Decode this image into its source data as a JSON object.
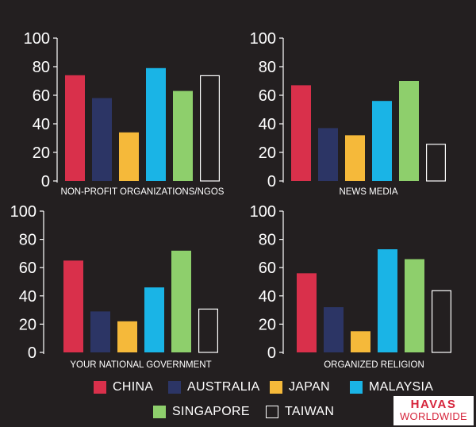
{
  "chart_data": [
    {
      "type": "bar",
      "title": "NON-PROFIT ORGANIZATIONS/NGOS",
      "categories": [
        "CHINA",
        "AUSTRALIA",
        "JAPAN",
        "MALAYSIA",
        "SINGAPORE",
        "TAIWAN"
      ],
      "values": [
        74,
        58,
        34,
        79,
        63,
        74
      ],
      "ylim": [
        0,
        100
      ],
      "yticks": [
        "0",
        "20",
        "40",
        "60",
        "80",
        "100"
      ]
    },
    {
      "type": "bar",
      "title": "NEWS MEDIA",
      "categories": [
        "CHINA",
        "AUSTRALIA",
        "JAPAN",
        "MALAYSIA",
        "SINGAPORE",
        "TAIWAN"
      ],
      "values": [
        67,
        37,
        32,
        56,
        70,
        26
      ],
      "ylim": [
        0,
        100
      ],
      "yticks": [
        "0",
        "20",
        "40",
        "60",
        "80",
        "100"
      ]
    },
    {
      "type": "bar",
      "title": "YOUR NATIONAL GOVERNMENT",
      "categories": [
        "CHINA",
        "AUSTRALIA",
        "JAPAN",
        "MALAYSIA",
        "SINGAPORE",
        "TAIWAN"
      ],
      "values": [
        65,
        29,
        22,
        46,
        72,
        31
      ],
      "ylim": [
        0,
        100
      ],
      "yticks": [
        "0",
        "20",
        "40",
        "60",
        "80",
        "100"
      ]
    },
    {
      "type": "bar",
      "title": "ORGANIZED RELIGION",
      "categories": [
        "CHINA",
        "AUSTRALIA",
        "JAPAN",
        "MALAYSIA",
        "SINGAPORE",
        "TAIWAN"
      ],
      "values": [
        56,
        32,
        15,
        73,
        66,
        44
      ],
      "ylim": [
        0,
        100
      ],
      "yticks": [
        "0",
        "20",
        "40",
        "60",
        "80",
        "100"
      ]
    }
  ],
  "legend": [
    {
      "label": "CHINA",
      "color": "#d9304b"
    },
    {
      "label": "AUSTRALIA",
      "color": "#2c3565"
    },
    {
      "label": "JAPAN",
      "color": "#f5b93a"
    },
    {
      "label": "MALAYSIA",
      "color": "#1ab4e6"
    },
    {
      "label": "SINGAPORE",
      "color": "#8ecf6c"
    },
    {
      "label": "TAIWAN",
      "color": "outline-white"
    }
  ],
  "logo": {
    "line1": "HAVAS",
    "line2": "WORLDWIDE"
  }
}
